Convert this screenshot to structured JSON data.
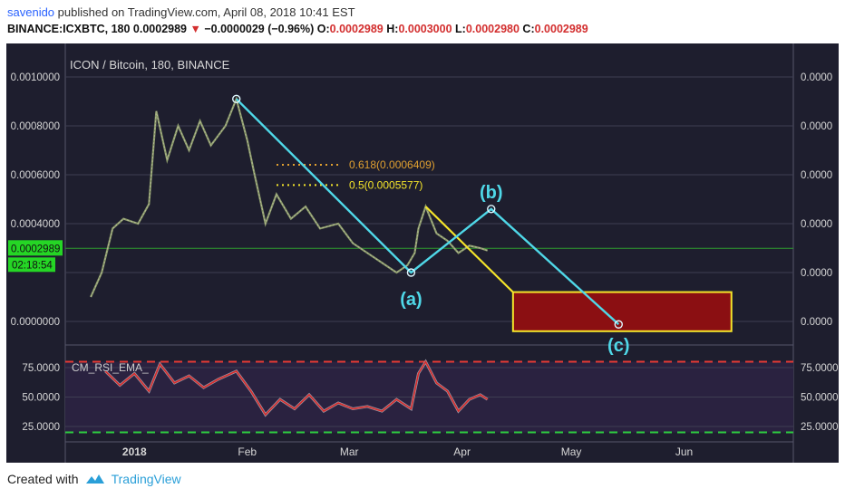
{
  "header": {
    "user": "savenido",
    "published_text": "published on TradingView.com, April 08, 2018 10:41 EST",
    "symbol": "BINANCE:ICXBTC, 180",
    "last": "0.0002989",
    "change": "−0.0000029 (−0.96%)",
    "o_label": "O:",
    "o_val": "0.0002989",
    "h_label": "H:",
    "h_val": "0.0003000",
    "l_label": "L:",
    "l_val": "0.0002980",
    "c_label": "C:",
    "c_val": "0.0002989"
  },
  "chart_data": {
    "type": "line",
    "title": "ICON / Bitcoin, 180, BINANCE",
    "price_ticks": [
      "0.0010000",
      "0.0008000",
      "0.0006000",
      "0.0004000",
      "0.0000000"
    ],
    "right_ticks": [
      "0.0000",
      "0.0000",
      "0.0000",
      "0.0000",
      "0.0000",
      "0.0000"
    ],
    "current_price_label": "0.0002989",
    "countdown_label": "02:18:54",
    "x_labels": [
      "2018",
      "Feb",
      "Mar",
      "Apr",
      "May",
      "Jun"
    ],
    "price_series": [
      [
        "2017-12-20",
        0.0001
      ],
      [
        "2017-12-23",
        0.0002
      ],
      [
        "2017-12-26",
        0.00038
      ],
      [
        "2017-12-29",
        0.00042
      ],
      [
        "2018-01-02",
        0.0004
      ],
      [
        "2018-01-05",
        0.00048
      ],
      [
        "2018-01-07",
        0.00086
      ],
      [
        "2018-01-10",
        0.00066
      ],
      [
        "2018-01-13",
        0.0008
      ],
      [
        "2018-01-16",
        0.0007
      ],
      [
        "2018-01-19",
        0.00082
      ],
      [
        "2018-01-22",
        0.00072
      ],
      [
        "2018-01-26",
        0.0008
      ],
      [
        "2018-01-29",
        0.00091
      ],
      [
        "2018-02-01",
        0.00074
      ],
      [
        "2018-02-03",
        0.0006
      ],
      [
        "2018-02-06",
        0.0004
      ],
      [
        "2018-02-09",
        0.00052
      ],
      [
        "2018-02-13",
        0.00042
      ],
      [
        "2018-02-17",
        0.00047
      ],
      [
        "2018-02-21",
        0.00038
      ],
      [
        "2018-02-26",
        0.0004
      ],
      [
        "2018-03-02",
        0.00032
      ],
      [
        "2018-03-06",
        0.00028
      ],
      [
        "2018-03-10",
        0.00024
      ],
      [
        "2018-03-14",
        0.0002
      ],
      [
        "2018-03-17",
        0.00023
      ],
      [
        "2018-03-19",
        0.00028
      ],
      [
        "2018-03-20",
        0.00038
      ],
      [
        "2018-03-22",
        0.00047
      ],
      [
        "2018-03-25",
        0.00036
      ],
      [
        "2018-03-28",
        0.00033
      ],
      [
        "2018-03-31",
        0.00028
      ],
      [
        "2018-04-03",
        0.00031
      ],
      [
        "2018-04-06",
        0.0003
      ],
      [
        "2018-04-08",
        0.00029
      ]
    ],
    "fib_levels": [
      {
        "label": "0.618(0.0006409)",
        "value": 0.0006409,
        "color": "#e0a030"
      },
      {
        "label": "0.5(0.0005577)",
        "value": 0.0005577,
        "color": "#f5e52a"
      }
    ],
    "wave_path": [
      [
        "2018-01-29",
        0.00091
      ],
      [
        "2018-03-18",
        0.0002
      ],
      [
        "2018-04-09",
        0.00046
      ],
      [
        "2018-05-14",
        -1.2e-05
      ]
    ],
    "wave_labels": [
      "(a)",
      "(b)",
      "(c)"
    ],
    "yellow_path": [
      [
        "2018-03-22",
        0.00047
      ],
      [
        "2018-04-15",
        0.00012
      ]
    ],
    "target_box": {
      "from": "2018-04-15",
      "to": "2018-06-14",
      "low": -4e-05,
      "high": 0.00012
    },
    "rsi": {
      "name": "CM_RSI_EMA_",
      "ticks_left": [
        "75.0000",
        "50.0000",
        "25.0000"
      ],
      "ticks_right": [
        "75.0000",
        "50.0000",
        "25.0000"
      ],
      "upper_band": 80,
      "lower_band": 20,
      "values": [
        [
          "2017-12-24",
          72
        ],
        [
          "2017-12-28",
          60
        ],
        [
          "2018-01-01",
          70
        ],
        [
          "2018-01-05",
          55
        ],
        [
          "2018-01-08",
          78
        ],
        [
          "2018-01-12",
          62
        ],
        [
          "2018-01-16",
          68
        ],
        [
          "2018-01-20",
          58
        ],
        [
          "2018-01-24",
          65
        ],
        [
          "2018-01-29",
          72
        ],
        [
          "2018-02-02",
          55
        ],
        [
          "2018-02-06",
          35
        ],
        [
          "2018-02-10",
          48
        ],
        [
          "2018-02-14",
          40
        ],
        [
          "2018-02-18",
          52
        ],
        [
          "2018-02-22",
          38
        ],
        [
          "2018-02-26",
          45
        ],
        [
          "2018-03-02",
          40
        ],
        [
          "2018-03-06",
          42
        ],
        [
          "2018-03-10",
          38
        ],
        [
          "2018-03-14",
          48
        ],
        [
          "2018-03-18",
          40
        ],
        [
          "2018-03-20",
          70
        ],
        [
          "2018-03-22",
          80
        ],
        [
          "2018-03-25",
          62
        ],
        [
          "2018-03-28",
          55
        ],
        [
          "2018-03-31",
          38
        ],
        [
          "2018-04-03",
          48
        ],
        [
          "2018-04-06",
          52
        ],
        [
          "2018-04-08",
          48
        ]
      ]
    }
  },
  "footer": {
    "created_with": "Created with",
    "brand": "TradingView"
  }
}
